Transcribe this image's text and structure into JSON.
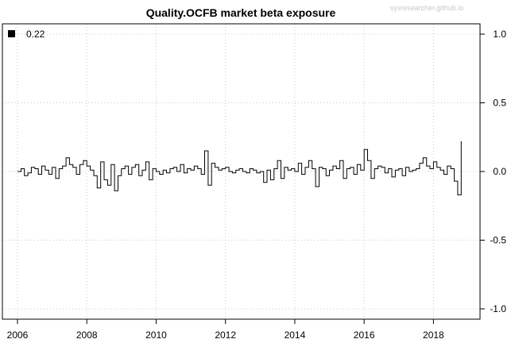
{
  "chart_data": {
    "type": "line",
    "title": "Quality.OCFB market beta exposure",
    "watermark": "sysresearcher.github.io",
    "xlabel": "",
    "ylabel": "",
    "xlim": [
      2006,
      2019
    ],
    "ylim": [
      -1.0,
      1.0
    ],
    "x_ticks": [
      2006,
      2008,
      2010,
      2012,
      2014,
      2016,
      2018
    ],
    "x_tick_labels": [
      "2006",
      "2008",
      "2010",
      "2012",
      "2014",
      "2016",
      "2018"
    ],
    "y_ticks": [
      1.0,
      0.5,
      0.0,
      -0.5,
      -1.0
    ],
    "y_tick_labels": [
      "1.0",
      "0.5",
      "0.0",
      "-0.5",
      "-1.0"
    ],
    "y_axis_side": "right",
    "grid": "dotted",
    "legend": {
      "placement": "top-left",
      "entries": [
        "0.22"
      ]
    },
    "line_color": "#000000",
    "series": [
      {
        "x": [
          2006.0,
          2006.1,
          2006.2,
          2006.3,
          2006.4,
          2006.5,
          2006.6,
          2006.7,
          2006.8,
          2006.9,
          2007.0,
          2007.1,
          2007.2,
          2007.3,
          2007.4,
          2007.5,
          2007.6,
          2007.7,
          2007.8,
          2007.9,
          2008.0,
          2008.1,
          2008.2,
          2008.3,
          2008.4,
          2008.5,
          2008.6,
          2008.7,
          2008.8,
          2008.9,
          2009.0,
          2009.1,
          2009.2,
          2009.3,
          2009.4,
          2009.5,
          2009.6,
          2009.7,
          2009.8,
          2009.9,
          2010.0,
          2010.1,
          2010.2,
          2010.3,
          2010.4,
          2010.5,
          2010.6,
          2010.7,
          2010.8,
          2010.9,
          2011.0,
          2011.1,
          2011.2,
          2011.3,
          2011.4,
          2011.5,
          2011.6,
          2011.7,
          2011.8,
          2011.9,
          2012.0,
          2012.1,
          2012.2,
          2012.3,
          2012.4,
          2012.5,
          2012.6,
          2012.7,
          2012.8,
          2012.9,
          2013.0,
          2013.1,
          2013.2,
          2013.3,
          2013.4,
          2013.5,
          2013.6,
          2013.7,
          2013.8,
          2013.9,
          2014.0,
          2014.1,
          2014.2,
          2014.3,
          2014.4,
          2014.5,
          2014.6,
          2014.7,
          2014.8,
          2014.9,
          2015.0,
          2015.1,
          2015.2,
          2015.3,
          2015.4,
          2015.5,
          2015.6,
          2015.7,
          2015.8,
          2015.9,
          2016.0,
          2016.1,
          2016.2,
          2016.3,
          2016.4,
          2016.5,
          2016.6,
          2016.7,
          2016.8,
          2016.9,
          2017.0,
          2017.1,
          2017.2,
          2017.3,
          2017.4,
          2017.5,
          2017.6,
          2017.7,
          2017.8,
          2017.9,
          2018.0,
          2018.1,
          2018.2,
          2018.3,
          2018.4,
          2018.5,
          2018.6,
          2018.7,
          2018.8
        ],
        "y": [
          0.0,
          0.02,
          -0.03,
          -0.01,
          0.03,
          0.02,
          -0.02,
          0.04,
          0.01,
          -0.02,
          0.03,
          -0.05,
          0.02,
          0.04,
          0.1,
          0.05,
          0.03,
          -0.02,
          0.05,
          0.08,
          0.04,
          0.01,
          -0.03,
          -0.12,
          0.07,
          -0.06,
          -0.1,
          0.05,
          -0.14,
          -0.03,
          0.02,
          0.04,
          -0.02,
          0.03,
          0.05,
          -0.03,
          0.01,
          0.07,
          -0.06,
          0.02,
          0.0,
          -0.02,
          0.01,
          -0.01,
          0.02,
          0.03,
          0.0,
          0.05,
          -0.01,
          0.02,
          0.01,
          0.04,
          0.02,
          -0.02,
          0.15,
          -0.1,
          0.06,
          0.03,
          0.01,
          0.02,
          0.03,
          0.0,
          -0.01,
          0.01,
          0.02,
          0.0,
          -0.01,
          0.02,
          0.01,
          -0.01,
          0.0,
          -0.08,
          0.01,
          -0.06,
          0.02,
          0.08,
          -0.05,
          0.03,
          0.01,
          0.02,
          0.0,
          0.06,
          -0.02,
          0.03,
          0.08,
          0.02,
          -0.11,
          0.03,
          0.02,
          -0.03,
          0.01,
          0.04,
          0.02,
          0.08,
          -0.05,
          0.02,
          0.03,
          -0.02,
          0.05,
          0.01,
          0.16,
          0.08,
          -0.05,
          0.02,
          0.04,
          0.03,
          -0.01,
          0.02,
          -0.04,
          0.01,
          0.02,
          -0.03,
          0.03,
          0.0,
          0.01,
          0.02,
          0.06,
          0.1,
          0.04,
          0.02,
          0.07,
          0.03,
          0.01,
          -0.02,
          0.04,
          0.02,
          -0.07,
          -0.17,
          0.22
        ]
      }
    ]
  }
}
